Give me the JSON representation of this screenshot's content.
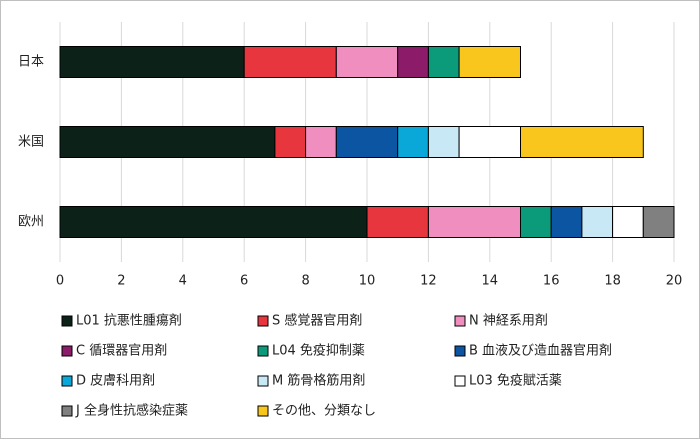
{
  "chart_data": {
    "type": "stacked-barh",
    "categories": [
      "日本",
      "米国",
      "欧州"
    ],
    "series": [
      {
        "name": "L01 抗悪性腫瘍剤",
        "color": "#0c2117",
        "values": [
          6,
          7,
          10
        ]
      },
      {
        "name": "S 感覚器官用剤",
        "color": "#e8363f",
        "values": [
          3,
          1,
          2
        ]
      },
      {
        "name": "N 神経系用剤",
        "color": "#f08fbf",
        "values": [
          2,
          1,
          3
        ]
      },
      {
        "name": "C 循環器官用剤",
        "color": "#8c1b6a",
        "values": [
          1,
          0,
          0
        ]
      },
      {
        "name": "L04 免疫抑制薬",
        "color": "#0b9b7b",
        "values": [
          1,
          0,
          1
        ]
      },
      {
        "name": "B 血液及び造血器官用剤",
        "color": "#0b55a3",
        "values": [
          0,
          2,
          1
        ]
      },
      {
        "name": "D 皮膚科用剤",
        "color": "#0aa7d9",
        "values": [
          0,
          1,
          0
        ]
      },
      {
        "name": "M 筋骨格筋用剤",
        "color": "#c8e8f6",
        "values": [
          0,
          1,
          1
        ]
      },
      {
        "name": "L03 免疫賦活薬",
        "color": "#ffffff",
        "values": [
          0,
          2,
          1
        ]
      },
      {
        "name": "J 全身性抗感染症薬",
        "color": "#808080",
        "values": [
          0,
          0,
          1
        ]
      },
      {
        "name": "その他、分類なし",
        "color": "#f9c61d",
        "values": [
          2,
          4,
          0
        ]
      }
    ],
    "xlim": [
      0,
      20
    ],
    "xticks": [
      0,
      2,
      4,
      6,
      8,
      10,
      12,
      14,
      16,
      18,
      20
    ],
    "grid": true
  }
}
